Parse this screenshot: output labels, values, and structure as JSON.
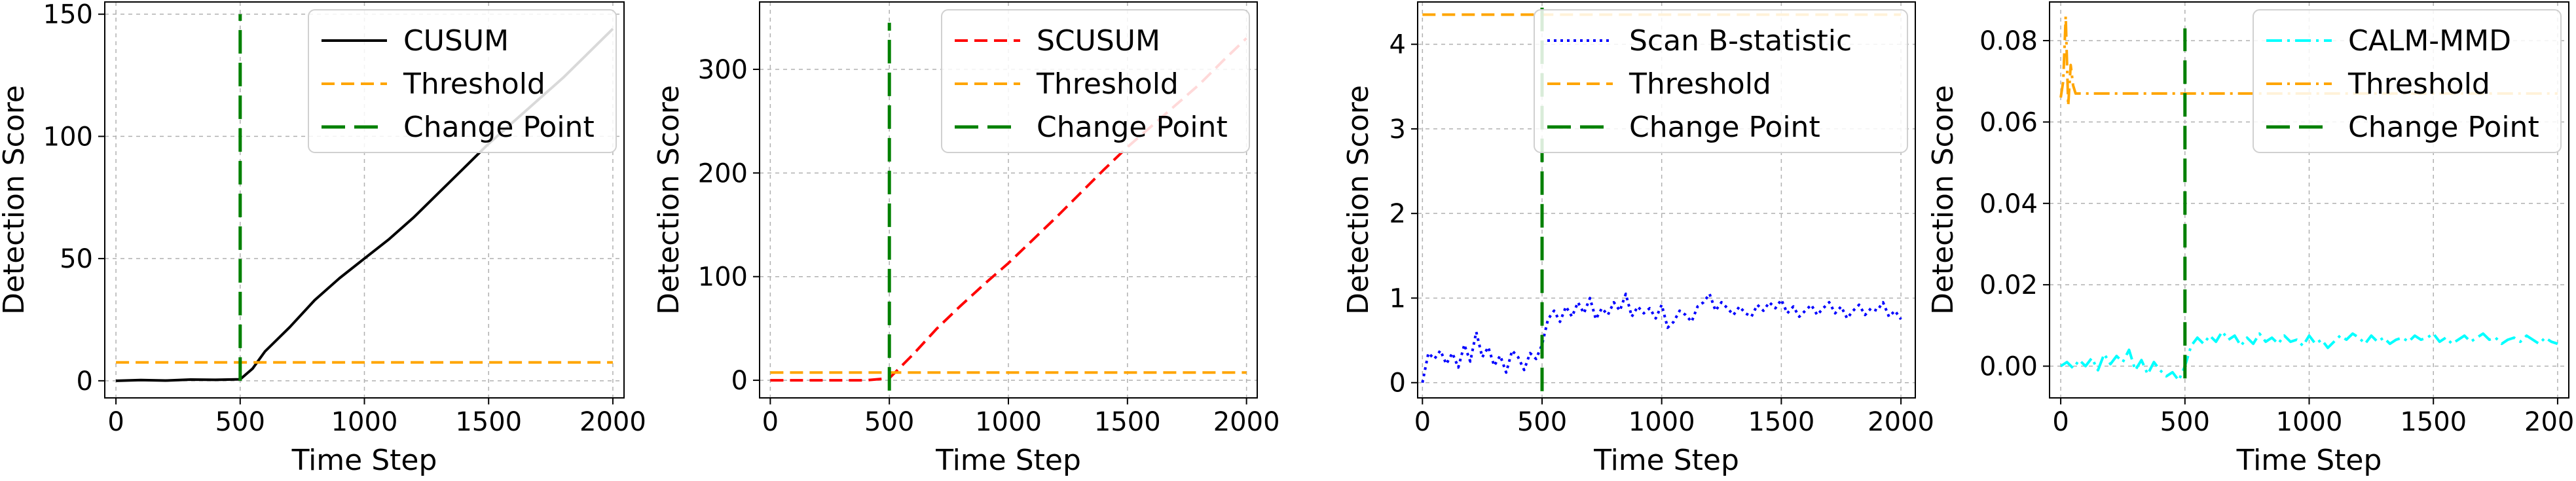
{
  "chart_data": [
    {
      "type": "line",
      "xlabel": "Time Step",
      "ylabel": "Detection Score",
      "xlim": [
        -45,
        2045
      ],
      "ylim": [
        -7,
        155
      ],
      "xticks": [
        0,
        500,
        1000,
        1500,
        2000
      ],
      "yticks": [
        0,
        50,
        100,
        150
      ],
      "xtick_labels": [
        "0",
        "500",
        "1000",
        "1500",
        "2000"
      ],
      "ytick_labels": [
        "0",
        "50",
        "100",
        "150"
      ],
      "grid": true,
      "legend_position": "upper right",
      "series": [
        {
          "name": "CUSUM",
          "color": "#000000",
          "style": "solid",
          "x": [
            0,
            100,
            200,
            300,
            400,
            500,
            550,
            600,
            700,
            800,
            900,
            1000,
            1100,
            1200,
            1300,
            1400,
            1500,
            1600,
            1700,
            1800,
            1900,
            2000
          ],
          "y": [
            0,
            0.3,
            0.1,
            0.5,
            0.4,
            0.6,
            5,
            12,
            22,
            33,
            42,
            50,
            58,
            67,
            77,
            87,
            97,
            106,
            115,
            124,
            134,
            144
          ]
        },
        {
          "name": "Threshold",
          "color": "#FFA500",
          "style": "dashed",
          "x": [
            0,
            2000
          ],
          "y": [
            7.5,
            7.5
          ]
        },
        {
          "name": "Change Point",
          "color": "#008000",
          "style": "longdash",
          "x": [
            500,
            500
          ],
          "y": [
            0,
            150
          ]
        }
      ]
    },
    {
      "type": "line",
      "xlabel": "Time Step",
      "ylabel": "Detection Score",
      "xlim": [
        -45,
        2045
      ],
      "ylim": [
        -17,
        365
      ],
      "xticks": [
        0,
        500,
        1000,
        1500,
        2000
      ],
      "yticks": [
        0,
        100,
        200,
        300
      ],
      "xtick_labels": [
        "0",
        "500",
        "1000",
        "1500",
        "2000"
      ],
      "ytick_labels": [
        "0",
        "100",
        "200",
        "300"
      ],
      "grid": true,
      "legend_position": "upper right",
      "series": [
        {
          "name": "SCUSUM",
          "color": "#FF0000",
          "style": "dashed",
          "x": [
            0,
            100,
            200,
            300,
            400,
            500,
            600,
            700,
            800,
            900,
            1000,
            1100,
            1200,
            1300,
            1400,
            1500,
            1600,
            1700,
            1800,
            1900,
            2000
          ],
          "y": [
            0,
            0,
            0,
            0,
            0,
            2,
            25,
            50,
            72,
            93,
            113,
            135,
            157,
            180,
            203,
            225,
            245,
            265,
            285,
            308,
            330
          ]
        },
        {
          "name": "Threshold",
          "color": "#FFA500",
          "style": "dashed",
          "x": [
            0,
            2000
          ],
          "y": [
            7.5,
            7.5
          ]
        },
        {
          "name": "Change Point",
          "color": "#008000",
          "style": "longdash",
          "x": [
            500,
            500
          ],
          "y": [
            -10,
            345
          ]
        }
      ]
    },
    {
      "type": "line",
      "xlabel": "Time Step",
      "ylabel": "Detection Score",
      "xlim": [
        -20,
        2060
      ],
      "ylim": [
        -0.18,
        4.5
      ],
      "xticks": [
        0,
        500,
        1000,
        1500,
        2000
      ],
      "yticks": [
        0,
        1,
        2,
        3,
        4
      ],
      "xtick_labels": [
        "0",
        "500",
        "1000",
        "1500",
        "2000"
      ],
      "ytick_labels": [
        "0",
        "1",
        "2",
        "3",
        "4"
      ],
      "grid": true,
      "legend_position": "upper right",
      "series": [
        {
          "name": "Scan B-statistic",
          "color": "#0000FF",
          "style": "dotted",
          "x": [
            0,
            25,
            50,
            75,
            100,
            125,
            150,
            175,
            200,
            225,
            250,
            275,
            300,
            325,
            350,
            375,
            400,
            425,
            450,
            475,
            500,
            525,
            550,
            575,
            600,
            625,
            650,
            675,
            700,
            725,
            750,
            775,
            800,
            825,
            850,
            875,
            900,
            925,
            950,
            975,
            1000,
            1025,
            1050,
            1075,
            1100,
            1125,
            1150,
            1175,
            1200,
            1225,
            1250,
            1275,
            1300,
            1325,
            1350,
            1375,
            1400,
            1425,
            1450,
            1475,
            1500,
            1525,
            1550,
            1575,
            1600,
            1625,
            1650,
            1675,
            1700,
            1725,
            1750,
            1775,
            1800,
            1825,
            1850,
            1875,
            1900,
            1925,
            1950,
            1975,
            2000
          ],
          "y": [
            0.0,
            0.35,
            0.28,
            0.38,
            0.22,
            0.35,
            0.18,
            0.45,
            0.25,
            0.6,
            0.3,
            0.42,
            0.2,
            0.32,
            0.12,
            0.38,
            0.3,
            0.15,
            0.35,
            0.28,
            0.45,
            0.75,
            0.85,
            0.72,
            0.9,
            0.78,
            0.95,
            0.82,
            1.0,
            0.75,
            0.88,
            0.8,
            0.95,
            0.85,
            1.05,
            0.78,
            0.9,
            0.82,
            0.88,
            0.76,
            0.92,
            0.65,
            0.72,
            0.85,
            0.8,
            0.72,
            0.9,
            0.95,
            1.05,
            0.85,
            0.95,
            0.88,
            0.8,
            0.9,
            0.82,
            0.78,
            0.92,
            0.85,
            0.95,
            0.88,
            0.98,
            0.82,
            0.9,
            0.78,
            0.85,
            0.92,
            0.8,
            0.88,
            0.95,
            0.82,
            0.9,
            0.76,
            0.85,
            0.92,
            0.8,
            0.88,
            0.85,
            0.95,
            0.78,
            0.85,
            0.75
          ]
        },
        {
          "name": "Threshold",
          "color": "#FFA500",
          "style": "dashed",
          "x": [
            0,
            2000
          ],
          "y": [
            4.35,
            4.35
          ]
        },
        {
          "name": "Change Point",
          "color": "#008000",
          "style": "longdash",
          "x": [
            500,
            500
          ],
          "y": [
            -0.1,
            4.45
          ]
        }
      ]
    },
    {
      "type": "line",
      "xlabel": "Time Step",
      "ylabel": "Detection Score",
      "xlim": [
        -45,
        2045
      ],
      "ylim": [
        -0.0078,
        0.0895
      ],
      "xticks": [
        0,
        500,
        1000,
        1500,
        2000
      ],
      "yticks": [
        0.0,
        0.02,
        0.04,
        0.06,
        0.08
      ],
      "xtick_labels": [
        "0",
        "500",
        "1000",
        "1500",
        "2000"
      ],
      "ytick_labels": [
        "0.00",
        "0.02",
        "0.04",
        "0.06",
        "0.08"
      ],
      "grid": true,
      "legend_position": "upper right",
      "series": [
        {
          "name": "CALM-MMD",
          "color": "#00FFFF",
          "style": "dashdot",
          "x": [
            0,
            25,
            50,
            75,
            100,
            125,
            150,
            175,
            200,
            225,
            250,
            275,
            300,
            325,
            350,
            375,
            400,
            425,
            450,
            475,
            500,
            525,
            550,
            575,
            600,
            625,
            650,
            675,
            700,
            725,
            750,
            775,
            800,
            825,
            850,
            875,
            900,
            925,
            950,
            975,
            1000,
            1025,
            1050,
            1075,
            1100,
            1125,
            1150,
            1175,
            1200,
            1225,
            1250,
            1275,
            1300,
            1325,
            1350,
            1375,
            1400,
            1425,
            1450,
            1475,
            1500,
            1525,
            1550,
            1575,
            1600,
            1625,
            1650,
            1675,
            1700,
            1725,
            1750,
            1775,
            1800,
            1825,
            1850,
            1875,
            1900,
            1925,
            1950,
            1975,
            2000
          ],
          "y": [
            0.0,
            0.001,
            -0.0005,
            0.0015,
            0.0,
            0.002,
            -0.001,
            0.003,
            0.0005,
            0.0025,
            0.001,
            0.004,
            -0.001,
            0.0015,
            -0.002,
            0.001,
            -0.001,
            -0.0025,
            -0.0015,
            -0.0035,
            0.0,
            0.005,
            0.007,
            0.0055,
            0.0075,
            0.006,
            0.0085,
            0.0065,
            0.0075,
            0.005,
            0.007,
            0.0055,
            0.008,
            0.006,
            0.007,
            0.0055,
            0.0075,
            0.006,
            0.0065,
            0.005,
            0.0075,
            0.0055,
            0.0065,
            0.0045,
            0.006,
            0.0075,
            0.0065,
            0.008,
            0.007,
            0.0055,
            0.0075,
            0.006,
            0.007,
            0.0055,
            0.0065,
            0.007,
            0.006,
            0.0075,
            0.0065,
            0.007,
            0.008,
            0.006,
            0.007,
            0.0055,
            0.0065,
            0.0075,
            0.006,
            0.007,
            0.008,
            0.0065,
            0.007,
            0.0055,
            0.0065,
            0.007,
            0.006,
            0.0075,
            0.0065,
            0.0055,
            0.007,
            0.006,
            0.0055
          ]
        },
        {
          "name": "Threshold",
          "color": "#FFA500",
          "style": "dashdot",
          "x": [
            0,
            10,
            20,
            30,
            40,
            50,
            60,
            100,
            300,
            500,
            1000,
            1500,
            2000
          ],
          "y": [
            0.066,
            0.07,
            0.086,
            0.064,
            0.074,
            0.069,
            0.067,
            0.067,
            0.067,
            0.067,
            0.067,
            0.067,
            0.067
          ]
        },
        {
          "name": "Change Point",
          "color": "#008000",
          "style": "longdash",
          "x": [
            500,
            500
          ],
          "y": [
            -0.003,
            0.083
          ]
        }
      ]
    }
  ]
}
